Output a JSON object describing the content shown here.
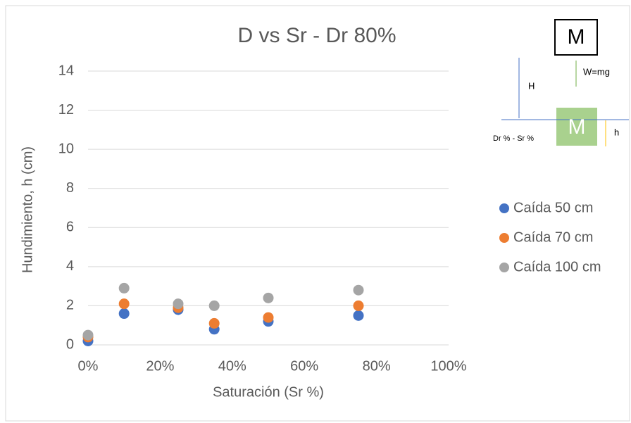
{
  "chart_data": {
    "type": "scatter",
    "title": "D vs Sr - Dr 80%",
    "x_label": "Saturación (Sr  %)",
    "y_label": "Hundimiento, h (cm)",
    "x": [
      0,
      10,
      25,
      35,
      50,
      75
    ],
    "series": [
      {
        "name": "Caída 50 cm",
        "color": "#4472c4",
        "values": [
          0.2,
          1.6,
          1.8,
          0.8,
          1.2,
          1.5
        ]
      },
      {
        "name": "Caída 70 cm",
        "color": "#ed7d31",
        "values": [
          0.4,
          2.1,
          1.9,
          1.1,
          1.4,
          2.0
        ]
      },
      {
        "name": "Caída 100 cm",
        "color": "#a5a5a5",
        "values": [
          0.5,
          2.9,
          2.1,
          2.0,
          2.4,
          2.8
        ]
      }
    ],
    "xlim": [
      0,
      100
    ],
    "xticks": [
      {
        "value": 0,
        "label": "0%"
      },
      {
        "value": 20,
        "label": "20%"
      },
      {
        "value": 40,
        "label": "40%"
      },
      {
        "value": 60,
        "label": "60%"
      },
      {
        "value": 80,
        "label": "80%"
      },
      {
        "value": 100,
        "label": "100%"
      }
    ],
    "ylim": [
      0,
      14
    ],
    "yticks": [
      0,
      2,
      4,
      6,
      8,
      10,
      12,
      14
    ],
    "grid": true,
    "legend": "right",
    "inset": {
      "mass_top": "M",
      "height": "H",
      "weight": "W=mg",
      "ground": "Dr % - Sr %",
      "mass_bottom": "M",
      "sink": "h"
    }
  }
}
